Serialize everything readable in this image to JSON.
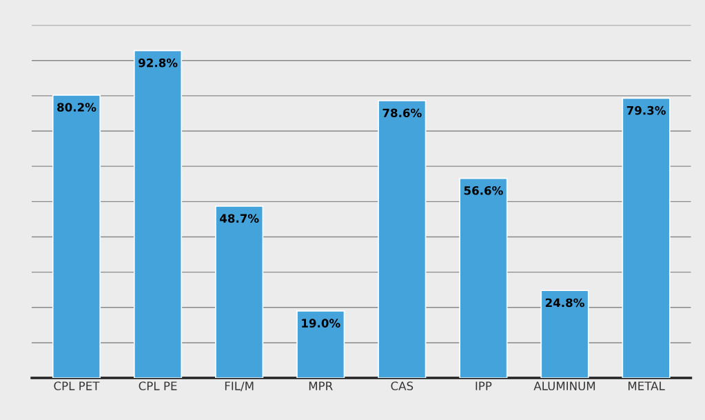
{
  "chart_data": {
    "type": "bar",
    "categories": [
      "CPL PET",
      "CPL PE",
      "FIL/M",
      "MPR",
      "CAS",
      "IPP",
      "ALUMINUM",
      "METAL"
    ],
    "values": [
      80.2,
      92.8,
      48.7,
      19.0,
      78.6,
      56.6,
      24.8,
      79.3
    ],
    "color": "#45a3dc",
    "value_labels": [
      "80.2%",
      "92.8%",
      "48.7%",
      "19.0%",
      "78.6%",
      "56.6%",
      "24.8%",
      "79.3%"
    ],
    "ylim": [
      0,
      100
    ],
    "yticks": [
      {
        "value": 0,
        "label": null
      },
      {
        "value": 10,
        "label": null
      },
      {
        "value": 20,
        "label": null
      },
      {
        "value": 30,
        "label": null
      },
      {
        "value": 40,
        "label": null
      },
      {
        "value": 50,
        "label": null
      },
      {
        "value": 60,
        "label": null
      },
      {
        "value": 70,
        "label": null
      },
      {
        "value": 80,
        "label": null
      },
      {
        "value": 90,
        "label": null
      },
      {
        "value": 100,
        "label": null
      }
    ],
    "grid": "y",
    "tick_labels": "x"
  }
}
